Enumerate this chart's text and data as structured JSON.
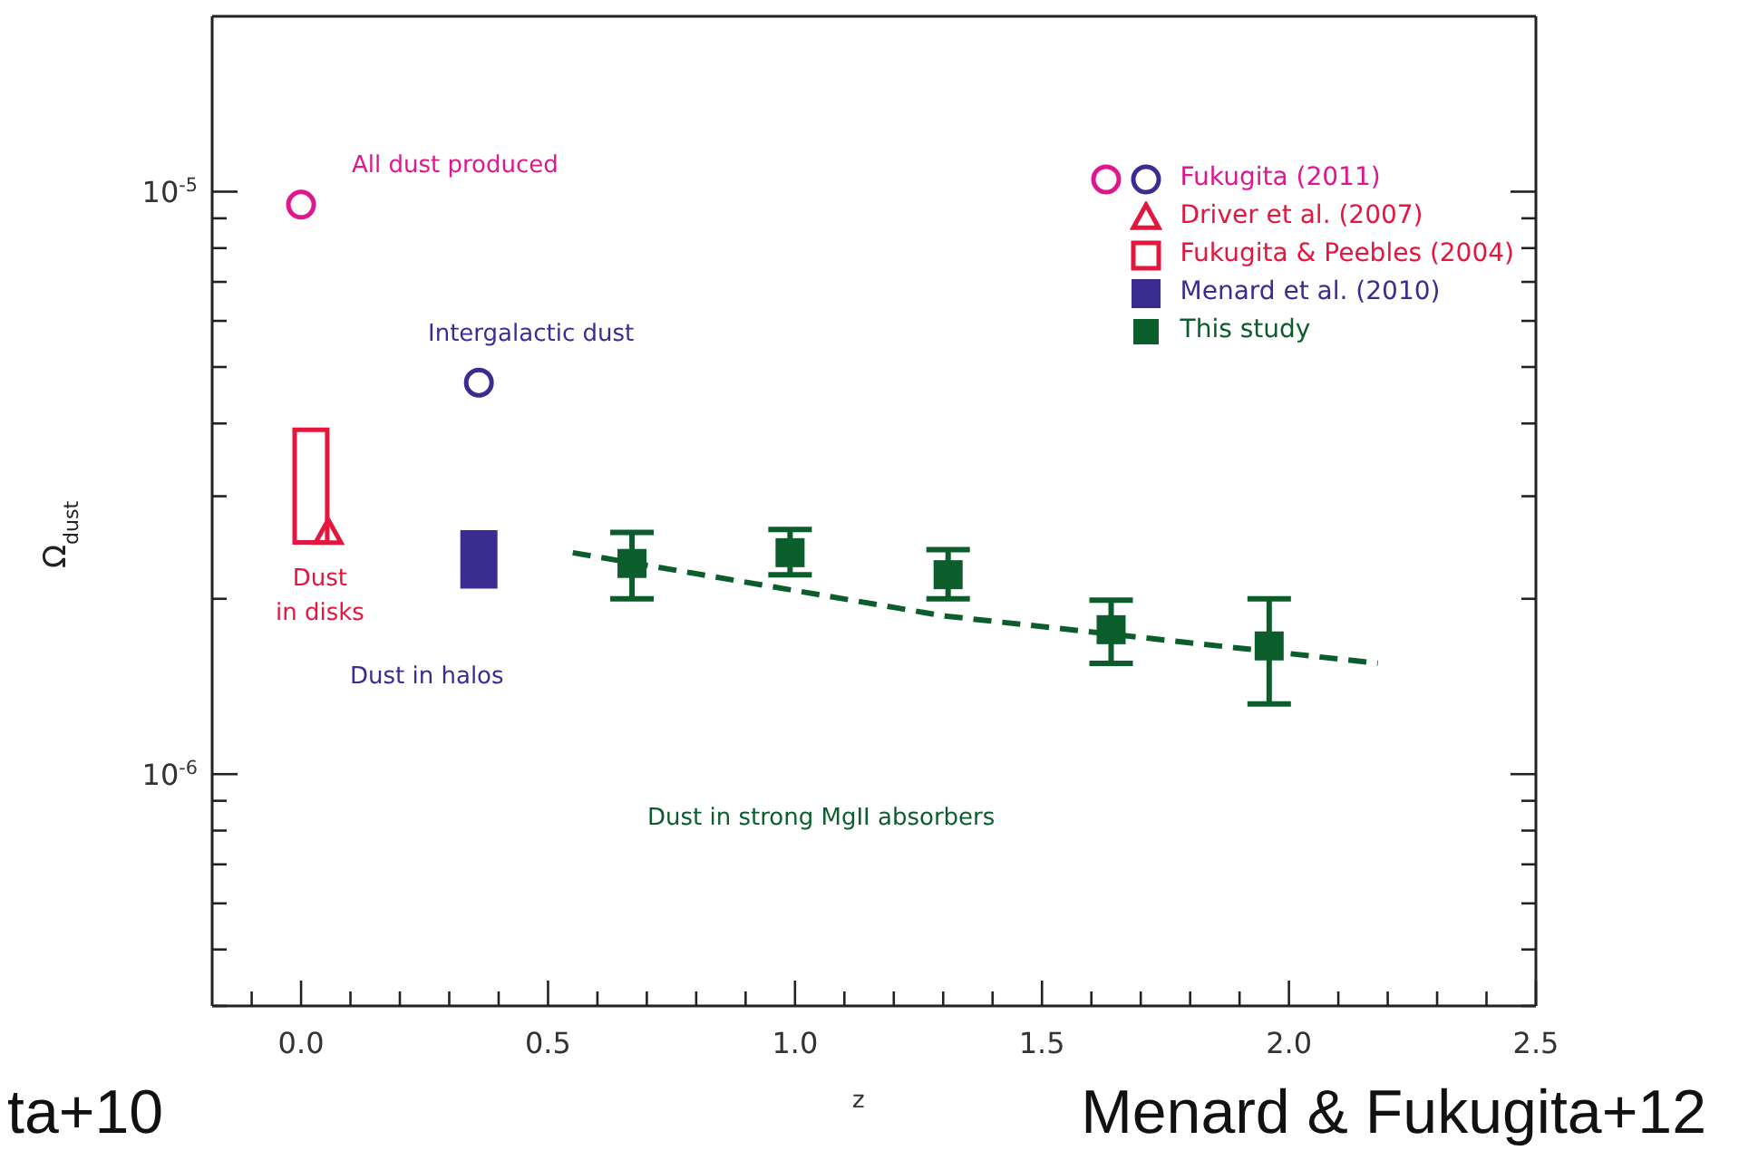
{
  "chart_data": {
    "type": "scatter",
    "xlabel": "z",
    "ylabel": "Ω$_{dust}$",
    "log": true,
    "legend": "top right",
    "xlim": [
      -0.18,
      2.5
    ],
    "xticks": [
      {
        "value": -0.1,
        "label": null
      },
      {
        "value": 0,
        "label": "0.0"
      },
      {
        "value": 0.1,
        "label": null
      },
      {
        "value": 0.2,
        "label": null
      },
      {
        "value": 0.3,
        "label": null
      },
      {
        "value": 0.4,
        "label": null
      },
      {
        "value": 0.5,
        "label": "0.5"
      },
      {
        "value": 0.6,
        "label": null
      },
      {
        "value": 0.7,
        "label": null
      },
      {
        "value": 0.8,
        "label": null
      },
      {
        "value": 0.9,
        "label": null
      },
      {
        "value": 1,
        "label": "1.0"
      },
      {
        "value": 1.1,
        "label": null
      },
      {
        "value": 1.2,
        "label": null
      },
      {
        "value": 1.3,
        "label": null
      },
      {
        "value": 1.4,
        "label": null
      },
      {
        "value": 1.5,
        "label": "1.5"
      },
      {
        "value": 1.6,
        "label": null
      },
      {
        "value": 1.7,
        "label": null
      },
      {
        "value": 1.8,
        "label": null
      },
      {
        "value": 1.9,
        "label": null
      },
      {
        "value": 2,
        "label": "2.0"
      },
      {
        "value": 2.1,
        "label": null
      },
      {
        "value": 2.2,
        "label": null
      },
      {
        "value": 2.3,
        "label": null
      },
      {
        "value": 2.4,
        "label": null
      },
      {
        "value": 2.5,
        "label": "2.5"
      }
    ],
    "ylim": [
      4e-07,
      2e-05
    ],
    "yticks": [
      {
        "value": 4e-07,
        "label": null
      },
      {
        "value": 5e-07,
        "label": null
      },
      {
        "value": 6e-07,
        "label": null
      },
      {
        "value": 7e-07,
        "label": null
      },
      {
        "value": 8e-07,
        "label": null
      },
      {
        "value": 9e-07,
        "label": null
      },
      {
        "value": 1e-06,
        "label": "10$^{-6}$"
      },
      {
        "value": 2e-06,
        "label": null
      },
      {
        "value": 3e-06,
        "label": null
      },
      {
        "value": 4e-06,
        "label": null
      },
      {
        "value": 5e-06,
        "label": null
      },
      {
        "value": 6e-06,
        "label": null
      },
      {
        "value": 7e-06,
        "label": null
      },
      {
        "value": 8e-06,
        "label": null
      },
      {
        "value": 9e-06,
        "label": null
      },
      {
        "value": 1e-05,
        "label": "10$^{-5}$"
      }
    ],
    "series": [
      {
        "name": "Fukugita (2011)",
        "marker": "circle",
        "colors": [
          "#e0168f",
          "#3b2c92"
        ],
        "x": [
          0,
          0.36
        ],
        "values": [
          9.5e-06,
          4.7e-06
        ]
      },
      {
        "name": "Driver et al. (2007)",
        "marker": "triangle",
        "color": "#e3173e",
        "x": [
          0.055
        ],
        "values": [
          2.6e-06
        ]
      },
      {
        "name": "Fukugita & Peebles (2004)",
        "type": "bar",
        "color": "#e3173e",
        "x": [
          0.02
        ],
        "base": [
          2.5e-06
        ],
        "values": [
          1.4e-06
        ]
      },
      {
        "name": "Menard et al. (2010)",
        "type": "bar",
        "marker": "square",
        "color": "#3b2c92",
        "x": [
          0.36
        ],
        "base": [
          2.1e-06
        ],
        "values": [
          5e-07
        ]
      },
      {
        "name": "This study",
        "marker": "square",
        "color": "#0b5e2c",
        "x": [
          0.67,
          0.99,
          1.31,
          1.64,
          1.96
        ],
        "values": [
          2.3e-06,
          2.4e-06,
          2.2e-06,
          1.77e-06,
          1.66e-06
        ],
        "errors": [
          [
            2e-06,
            2.6e-06
          ],
          [
            2.2e-06,
            2.63e-06
          ],
          [
            2e-06,
            2.43e-06
          ],
          [
            1.55e-06,
            1.99e-06
          ],
          [
            1.32e-06,
            2e-06
          ]
        ]
      },
      {
        "type": "line",
        "line_style": "dashed",
        "marker": "none",
        "color": "#0b5e2c",
        "x": [
          0.55,
          1.3,
          2.18
        ],
        "values": [
          2.4e-06,
          1.87e-06,
          1.55e-06
        ]
      }
    ],
    "annotations": [
      "ta+10",
      "Menard & Fukugita+12",
      "All dust produced",
      "Intergalactic dust",
      "Dust\nin disks",
      "Dust in halos",
      "Dust in strong MgII absorbers"
    ]
  }
}
